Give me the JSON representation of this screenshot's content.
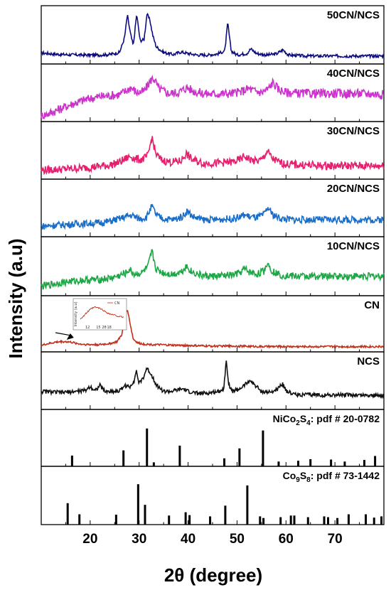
{
  "chart_data": {
    "type": "line",
    "xlabel": "2θ (degree)",
    "ylabel": "Intensity (a.u)",
    "xlim": [
      10,
      80
    ],
    "x_ticks": [
      20,
      30,
      40,
      50,
      60,
      70
    ],
    "grid": false,
    "series": [
      {
        "name": "50CN/NCS",
        "color": "#0d0d80",
        "x": [
          10,
          14,
          18,
          22,
          24,
          26,
          27,
          27.6,
          28.2,
          28.8,
          29.5,
          30.2,
          31,
          31.6,
          32.2,
          32.8,
          33.5,
          35,
          37,
          38.5,
          40,
          42,
          44,
          46,
          47.5,
          48.1,
          48.8,
          50,
          52,
          52.8,
          54,
          56,
          58,
          59.4,
          60.5,
          64,
          68,
          72,
          76,
          80
        ],
        "y": [
          0.16,
          0.13,
          0.12,
          0.12,
          0.13,
          0.17,
          0.45,
          0.9,
          0.55,
          0.3,
          0.92,
          0.4,
          0.42,
          0.92,
          0.8,
          0.5,
          0.28,
          0.17,
          0.13,
          0.18,
          0.15,
          0.12,
          0.12,
          0.14,
          0.2,
          0.75,
          0.2,
          0.12,
          0.15,
          0.24,
          0.15,
          0.12,
          0.14,
          0.22,
          0.12,
          0.1,
          0.1,
          0.1,
          0.1,
          0.1
        ]
      },
      {
        "name": "40CN/NCS",
        "color": "#cc33cc",
        "x": [
          10,
          12,
          14,
          16,
          18,
          20,
          22,
          24,
          26,
          27.5,
          28.3,
          29.5,
          31,
          32.5,
          33,
          34,
          36,
          38,
          39.8,
          41,
          43,
          45,
          47,
          49,
          51,
          52.3,
          53.5,
          55,
          56.5,
          57.3,
          58.5,
          60,
          64,
          68,
          72,
          76,
          80
        ],
        "y": [
          0.05,
          0.12,
          0.2,
          0.28,
          0.35,
          0.4,
          0.44,
          0.46,
          0.48,
          0.56,
          0.62,
          0.52,
          0.54,
          0.78,
          0.8,
          0.6,
          0.5,
          0.52,
          0.62,
          0.55,
          0.5,
          0.49,
          0.5,
          0.5,
          0.54,
          0.6,
          0.55,
          0.52,
          0.6,
          0.72,
          0.58,
          0.52,
          0.5,
          0.5,
          0.5,
          0.5,
          0.48
        ]
      },
      {
        "name": "30CN/NCS",
        "color": "#e6206e",
        "x": [
          10,
          14,
          18,
          22,
          24,
          26,
          27.5,
          28.3,
          29.2,
          30.5,
          31.8,
          32.6,
          33.4,
          34.5,
          36.5,
          38.5,
          39.6,
          40.8,
          43,
          45,
          47,
          49,
          50.5,
          51.5,
          52.3,
          53.5,
          55,
          56.2,
          57.2,
          58.5,
          60,
          64,
          68,
          72,
          76,
          80
        ],
        "y": [
          0.12,
          0.14,
          0.16,
          0.2,
          0.22,
          0.28,
          0.36,
          0.4,
          0.34,
          0.33,
          0.4,
          0.78,
          0.45,
          0.32,
          0.28,
          0.3,
          0.45,
          0.33,
          0.26,
          0.26,
          0.27,
          0.28,
          0.32,
          0.4,
          0.35,
          0.3,
          0.32,
          0.5,
          0.35,
          0.28,
          0.24,
          0.22,
          0.21,
          0.21,
          0.21,
          0.21
        ]
      },
      {
        "name": "20CN/NCS",
        "color": "#1a6ec8",
        "x": [
          10,
          14,
          18,
          22,
          24,
          26,
          27.5,
          28.5,
          30,
          31.5,
          32.6,
          33.6,
          35,
          37,
          38.8,
          39.8,
          41,
          43,
          45,
          47,
          49,
          50.5,
          51.5,
          52.5,
          54,
          55.5,
          56.3,
          57.3,
          59,
          62,
          66,
          70,
          75,
          80
        ],
        "y": [
          0.15,
          0.18,
          0.2,
          0.22,
          0.25,
          0.3,
          0.35,
          0.37,
          0.3,
          0.33,
          0.55,
          0.36,
          0.3,
          0.28,
          0.34,
          0.45,
          0.34,
          0.28,
          0.28,
          0.29,
          0.3,
          0.33,
          0.38,
          0.34,
          0.32,
          0.38,
          0.52,
          0.38,
          0.3,
          0.28,
          0.28,
          0.28,
          0.28,
          0.28
        ]
      },
      {
        "name": "10CN/NCS",
        "color": "#1fa646",
        "x": [
          10,
          14,
          18,
          22,
          24,
          26,
          27.3,
          28,
          29,
          30.5,
          31.8,
          32.6,
          33.5,
          35,
          37,
          38.8,
          39.6,
          40.8,
          43,
          45,
          47,
          49,
          50.5,
          51.5,
          52.5,
          54,
          55.5,
          56.2,
          57.2,
          59,
          62,
          66,
          70,
          75,
          80
        ],
        "y": [
          0.12,
          0.2,
          0.24,
          0.26,
          0.28,
          0.33,
          0.38,
          0.45,
          0.36,
          0.38,
          0.5,
          0.8,
          0.45,
          0.38,
          0.36,
          0.42,
          0.52,
          0.4,
          0.33,
          0.32,
          0.33,
          0.34,
          0.38,
          0.46,
          0.4,
          0.36,
          0.42,
          0.58,
          0.42,
          0.34,
          0.32,
          0.32,
          0.32,
          0.32,
          0.32
        ]
      },
      {
        "name": "CN",
        "color": "#c0301c",
        "x": [
          10,
          11,
          12,
          13,
          14,
          15,
          16,
          17,
          18,
          20,
          22,
          24,
          25.5,
          26.5,
          27.1,
          27.6,
          28.1,
          28.8,
          29.8,
          31,
          33,
          36,
          40,
          45,
          50,
          55,
          60,
          65,
          70,
          75,
          80
        ],
        "y": [
          0.07,
          0.1,
          0.12,
          0.14,
          0.15,
          0.15,
          0.14,
          0.12,
          0.1,
          0.09,
          0.09,
          0.11,
          0.15,
          0.3,
          0.68,
          0.82,
          0.55,
          0.2,
          0.12,
          0.1,
          0.09,
          0.08,
          0.07,
          0.06,
          0.06,
          0.05,
          0.05,
          0.05,
          0.05,
          0.05,
          0.05
        ]
      },
      {
        "name": "NCS",
        "color": "#111111",
        "x": [
          10,
          14,
          17,
          19,
          20,
          21,
          22,
          23,
          24,
          26,
          27,
          28,
          29,
          29.4,
          30,
          31,
          31.5,
          32.2,
          32.8,
          33.6,
          35,
          36.5,
          38,
          39,
          40,
          42,
          44.5,
          46,
          47.3,
          47.8,
          48.3,
          49,
          50.5,
          52,
          52.6,
          53.5,
          55,
          57,
          58.5,
          59.3,
          60.2,
          62,
          66,
          70,
          74,
          78,
          80
        ],
        "y": [
          0.3,
          0.28,
          0.3,
          0.32,
          0.4,
          0.32,
          0.42,
          0.3,
          0.3,
          0.31,
          0.42,
          0.38,
          0.52,
          0.72,
          0.45,
          0.6,
          0.76,
          0.68,
          0.58,
          0.42,
          0.3,
          0.3,
          0.33,
          0.35,
          0.3,
          0.26,
          0.27,
          0.3,
          0.35,
          0.94,
          0.45,
          0.3,
          0.35,
          0.46,
          0.52,
          0.44,
          0.3,
          0.28,
          0.36,
          0.46,
          0.3,
          0.24,
          0.23,
          0.23,
          0.23,
          0.22,
          0.22
        ]
      }
    ],
    "reference_patterns": [
      {
        "name": "NiCo2S4: pdf # 20-0782",
        "positions": [
          16.3,
          26.8,
          31.6,
          33.0,
          38.3,
          47.4,
          50.5,
          55.3,
          58.5,
          62.5,
          65.0,
          69.2,
          72.0,
          76.0,
          78.2
        ],
        "heights": [
          0.27,
          0.4,
          0.95,
          0.1,
          0.52,
          0.2,
          0.45,
          0.9,
          0.12,
          0.14,
          0.18,
          0.17,
          0.12,
          0.16,
          0.26
        ]
      },
      {
        "name": "Co9S8: pdf # 73-1442",
        "positions": [
          15.4,
          17.8,
          25.3,
          29.8,
          31.2,
          36.1,
          39.5,
          40.3,
          44.5,
          47.6,
          52.1,
          54.7,
          55.4,
          58.9,
          61.0,
          61.7,
          64.5,
          67.8,
          68.6,
          70.5,
          72.8,
          76.3,
          78.0,
          79.5
        ],
        "heights": [
          0.52,
          0.25,
          0.24,
          0.98,
          0.48,
          0.22,
          0.3,
          0.23,
          0.2,
          0.46,
          0.95,
          0.2,
          0.16,
          0.18,
          0.22,
          0.22,
          0.18,
          0.2,
          0.18,
          0.16,
          0.25,
          0.25,
          0.17,
          0.2
        ]
      }
    ],
    "panel_labels": [
      "50CN/NCS",
      "40CN/NCS",
      "30CN/NCS",
      "20CN/NCS",
      "10CN/NCS",
      "CN",
      "NCS"
    ],
    "inset": {
      "series": {
        "name": "CN",
        "x": [
          10,
          11,
          12,
          13,
          14,
          15,
          16,
          17,
          18,
          19,
          20,
          21,
          22
        ],
        "y": [
          0.2,
          0.35,
          0.55,
          0.7,
          0.78,
          0.75,
          0.66,
          0.55,
          0.45,
          0.4,
          0.35,
          0.3,
          0.28
        ]
      },
      "xlabel": "2θ",
      "ylabel": "Intensity (a.u)",
      "x_ticks": [
        12,
        15,
        18
      ],
      "legend": "CN"
    }
  }
}
